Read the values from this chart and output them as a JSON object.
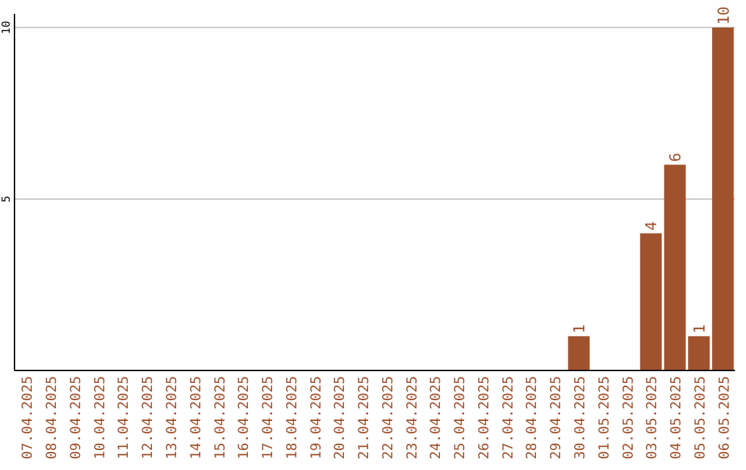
{
  "chart_data": {
    "type": "bar",
    "categories": [
      "07.04.2025",
      "08.04.2025",
      "09.04.2025",
      "10.04.2025",
      "11.04.2025",
      "12.04.2025",
      "13.04.2025",
      "14.04.2025",
      "15.04.2025",
      "16.04.2025",
      "17.04.2025",
      "18.04.2025",
      "19.04.2025",
      "20.04.2025",
      "21.04.2025",
      "22.04.2025",
      "23.04.2025",
      "24.04.2025",
      "25.04.2025",
      "26.04.2025",
      "27.04.2025",
      "28.04.2025",
      "29.04.2025",
      "30.04.2025",
      "01.05.2025",
      "02.05.2025",
      "03.05.2025",
      "04.05.2025",
      "05.05.2025",
      "06.05.2025"
    ],
    "values": [
      0,
      0,
      0,
      0,
      0,
      0,
      0,
      0,
      0,
      0,
      0,
      0,
      0,
      0,
      0,
      0,
      0,
      0,
      0,
      0,
      0,
      0,
      0,
      1,
      0,
      0,
      4,
      6,
      1,
      10
    ],
    "value_labels": [
      null,
      null,
      null,
      null,
      null,
      null,
      null,
      null,
      null,
      null,
      null,
      null,
      null,
      null,
      null,
      null,
      null,
      null,
      null,
      null,
      null,
      null,
      null,
      "1",
      null,
      null,
      "4",
      "6",
      "1",
      "10"
    ],
    "color": "#a0522d",
    "ylim": [
      0,
      10.4
    ],
    "yticks": [
      5,
      10
    ],
    "grid": "y"
  }
}
